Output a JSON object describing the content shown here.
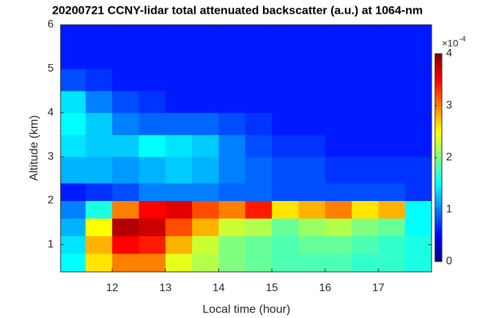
{
  "chart_data": {
    "type": "heatmap",
    "title": "20200721 CCNY-lidar total attenuated backscatter (a.u.) at 1064-nm",
    "xlabel": "Local time (hour)",
    "ylabel": "Altitude (km)",
    "x": [
      11.03,
      11.5,
      12,
      12.5,
      13,
      13.5,
      14,
      14.5,
      15,
      15.5,
      16,
      16.5,
      17,
      17.5,
      18.0
    ],
    "y": [
      0.38,
      0.8,
      1.2,
      1.6,
      2.0,
      2.4,
      3.0,
      3.5,
      4.0,
      4.5,
      5.0,
      5.5,
      6.0
    ],
    "values": [
      [
        1.5,
        2.6,
        3.0,
        3.0,
        2.4,
        2.2,
        2.0,
        1.9,
        1.8,
        1.8,
        1.8,
        1.7,
        1.7,
        1.6
      ],
      [
        1.4,
        2.8,
        3.5,
        3.4,
        2.8,
        2.3,
        2.0,
        1.9,
        1.8,
        1.9,
        1.9,
        1.8,
        1.7,
        1.6
      ],
      [
        1.2,
        2.5,
        3.8,
        3.7,
        3.2,
        2.8,
        2.3,
        2.2,
        1.9,
        2.1,
        2.2,
        2.0,
        1.9,
        1.5
      ],
      [
        1.0,
        1.6,
        3.0,
        3.5,
        3.6,
        3.2,
        3.0,
        3.4,
        2.6,
        2.8,
        3.0,
        2.6,
        2.8,
        1.5
      ],
      [
        0.6,
        0.7,
        0.8,
        1.0,
        1.0,
        1.0,
        0.9,
        0.9,
        0.8,
        0.8,
        0.8,
        0.8,
        0.8,
        0.7
      ],
      [
        1.2,
        1.2,
        1.1,
        1.2,
        1.3,
        1.2,
        1.0,
        0.9,
        0.8,
        0.8,
        0.7,
        0.7,
        0.7,
        0.7
      ],
      [
        1.4,
        1.3,
        1.3,
        1.5,
        1.4,
        1.3,
        1.0,
        0.8,
        0.7,
        0.7,
        0.6,
        0.6,
        0.6,
        0.6
      ],
      [
        1.5,
        1.3,
        1.0,
        0.9,
        0.9,
        0.9,
        0.8,
        0.7,
        0.6,
        0.6,
        0.6,
        0.6,
        0.6,
        0.6
      ],
      [
        1.4,
        1.0,
        0.8,
        0.7,
        0.6,
        0.6,
        0.6,
        0.6,
        0.6,
        0.6,
        0.6,
        0.6,
        0.6,
        0.6
      ],
      [
        0.8,
        0.7,
        0.6,
        0.6,
        0.6,
        0.6,
        0.6,
        0.6,
        0.6,
        0.6,
        0.6,
        0.6,
        0.6,
        0.6
      ],
      [
        0.6,
        0.6,
        0.6,
        0.6,
        0.6,
        0.6,
        0.6,
        0.6,
        0.6,
        0.6,
        0.6,
        0.6,
        0.6,
        0.6
      ],
      [
        0.6,
        0.6,
        0.6,
        0.6,
        0.6,
        0.6,
        0.6,
        0.6,
        0.6,
        0.6,
        0.6,
        0.6,
        0.6,
        0.6
      ]
    ],
    "xlim": [
      11.03,
      18.0
    ],
    "ylim": [
      0.38,
      6
    ],
    "xticks": [
      12,
      13,
      14,
      15,
      16,
      17
    ],
    "yticks": [
      1,
      2,
      3,
      4,
      5,
      6
    ],
    "colormap": "jet",
    "clim": [
      0,
      4
    ],
    "cticks": [
      0,
      1,
      2,
      3,
      4
    ],
    "colorbar_multiplier": "×10",
    "colorbar_exponent": "-4"
  }
}
